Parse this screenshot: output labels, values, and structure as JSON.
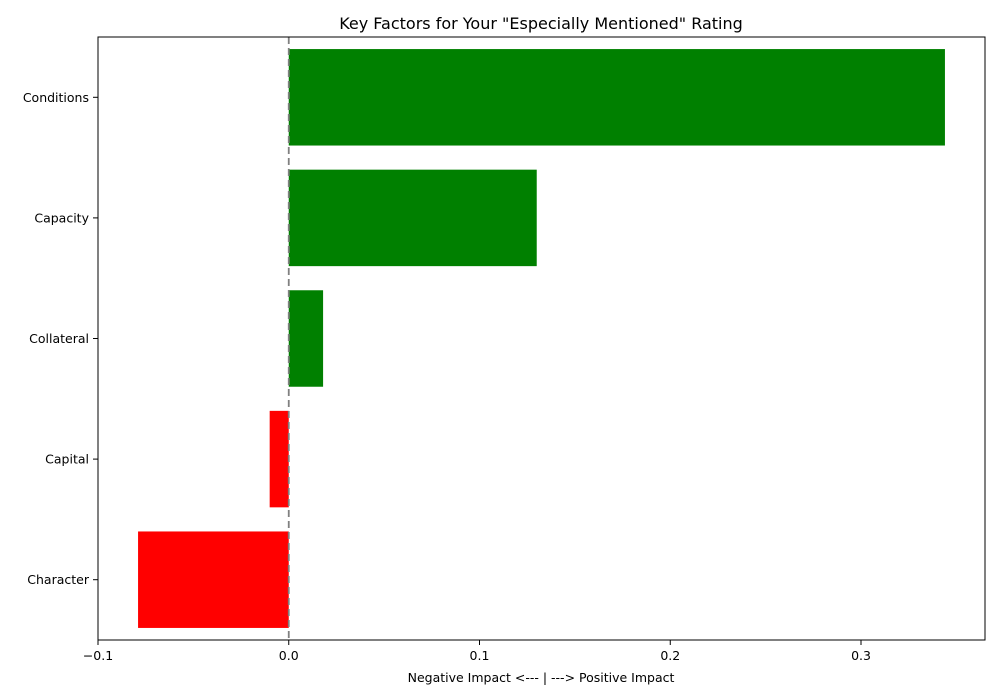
{
  "chart_data": {
    "type": "bar",
    "orientation": "horizontal",
    "title": "Key Factors for Your \"Especially Mentioned\" Rating",
    "xlabel": "Negative Impact <--- | ---> Positive Impact",
    "ylabel": "",
    "categories": [
      "Character",
      "Capital",
      "Collateral",
      "Capacity",
      "Conditions"
    ],
    "values": [
      -0.079,
      -0.01,
      0.018,
      0.13,
      0.344
    ],
    "bar_colors": [
      "#ff0000",
      "#ff0000",
      "#008000",
      "#008000",
      "#008000"
    ],
    "positive_color": "#008000",
    "negative_color": "#ff0000",
    "reference_line": {
      "x": 0.0,
      "style": "dashed",
      "color": "#808080"
    },
    "xlim": [
      -0.1,
      0.365
    ],
    "xticks": [
      -0.1,
      0.0,
      0.1,
      0.2,
      0.3
    ],
    "xtick_labels": [
      "−0.1",
      "0.0",
      "0.1",
      "0.2",
      "0.3"
    ],
    "grid": false,
    "legend": "none"
  }
}
